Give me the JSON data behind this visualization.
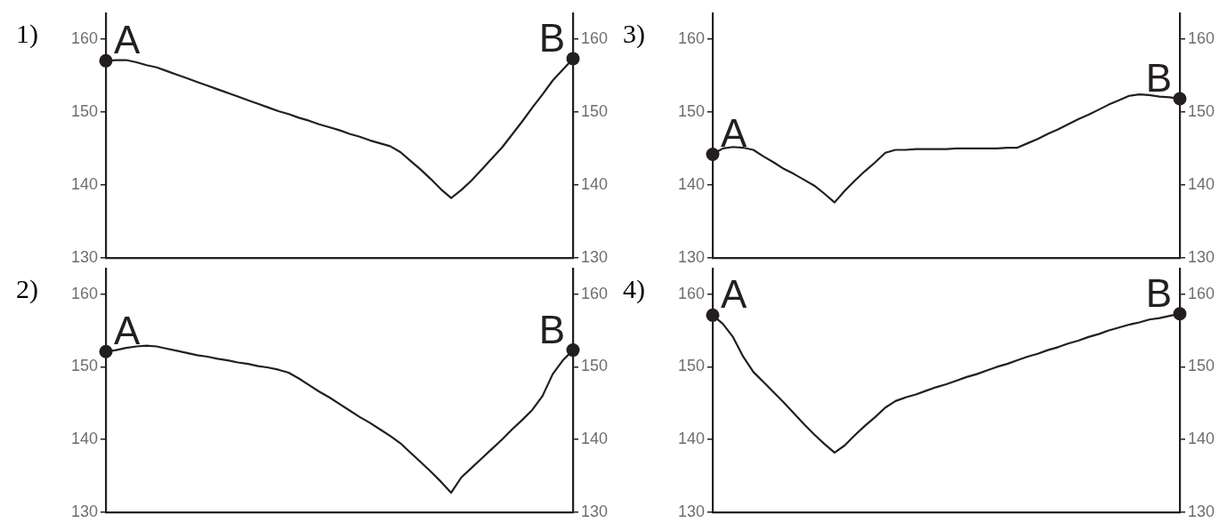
{
  "chart_data": [
    {
      "type": "line",
      "title": "1)",
      "categories": [
        null,
        null,
        null,
        null,
        null,
        null,
        null,
        null,
        null,
        null,
        null,
        null,
        null,
        null,
        null,
        null,
        null,
        null,
        null,
        null,
        null,
        null,
        null,
        null,
        null,
        null,
        null,
        null,
        null,
        null,
        null,
        null,
        null,
        null,
        null,
        null,
        null,
        null,
        null,
        null,
        null,
        null,
        null,
        null,
        null,
        null,
        null
      ],
      "series": [
        {
          "type": "line",
          "color": "#231f20",
          "marker": "none",
          "values": [
            157.0,
            157.1,
            157.1,
            156.8,
            156.4,
            156.1,
            155.6,
            155.1,
            154.6,
            154.1,
            153.6,
            153.1,
            152.6,
            152.1,
            151.6,
            151.1,
            150.6,
            150.1,
            149.7,
            149.2,
            148.8,
            148.3,
            147.9,
            147.5,
            147.0,
            146.6,
            146.1,
            145.7,
            145.3,
            144.5,
            143.3,
            142.1,
            140.8,
            139.4,
            138.2,
            139.3,
            140.6,
            142.1,
            143.6,
            145.1,
            146.9,
            148.7,
            150.6,
            152.4,
            154.3,
            155.8,
            157.3
          ]
        },
        {
          "type": "scatter",
          "color": "#231f20",
          "marker": "circle",
          "values": [
            157.0,
            null,
            null,
            null,
            null,
            null,
            null,
            null,
            null,
            null,
            null,
            null,
            null,
            null,
            null,
            null,
            null,
            null,
            null,
            null,
            null,
            null,
            null,
            null,
            null,
            null,
            null,
            null,
            null,
            null,
            null,
            null,
            null,
            null,
            null,
            null,
            null,
            null,
            null,
            null,
            null,
            null,
            null,
            null,
            null,
            null,
            157.3
          ]
        }
      ],
      "ylim": [
        130,
        163.5
      ],
      "yticks": [
        130,
        140,
        150,
        160
      ],
      "y2lim": [
        130,
        163.5
      ],
      "y2ticks": [
        130,
        140,
        150,
        160
      ],
      "tick_labels": "y",
      "annotations": [
        "A",
        "B"
      ]
    },
    {
      "type": "line",
      "title": "3)",
      "categories": [
        null,
        null,
        null,
        null,
        null,
        null,
        null,
        null,
        null,
        null,
        null,
        null,
        null,
        null,
        null,
        null,
        null,
        null,
        null,
        null,
        null,
        null,
        null,
        null,
        null,
        null,
        null,
        null,
        null,
        null,
        null,
        null,
        null,
        null,
        null,
        null,
        null,
        null,
        null,
        null,
        null,
        null,
        null,
        null,
        null,
        null,
        null
      ],
      "series": [
        {
          "type": "line",
          "color": "#231f20",
          "marker": "none",
          "values": [
            144.2,
            145.0,
            145.2,
            145.1,
            144.8,
            143.9,
            143.1,
            142.2,
            141.5,
            140.7,
            139.9,
            138.8,
            137.6,
            139.2,
            140.6,
            141.9,
            143.1,
            144.4,
            144.8,
            144.8,
            144.9,
            144.9,
            144.9,
            144.9,
            145.0,
            145.0,
            145.0,
            145.0,
            145.0,
            145.1,
            145.1,
            145.7,
            146.3,
            147.0,
            147.6,
            148.3,
            149.0,
            149.6,
            150.3,
            151.0,
            151.6,
            152.2,
            152.4,
            152.3,
            152.1,
            152.0,
            151.8
          ]
        },
        {
          "type": "scatter",
          "color": "#231f20",
          "marker": "circle",
          "values": [
            144.2,
            null,
            null,
            null,
            null,
            null,
            null,
            null,
            null,
            null,
            null,
            null,
            null,
            null,
            null,
            null,
            null,
            null,
            null,
            null,
            null,
            null,
            null,
            null,
            null,
            null,
            null,
            null,
            null,
            null,
            null,
            null,
            null,
            null,
            null,
            null,
            null,
            null,
            null,
            null,
            null,
            null,
            null,
            null,
            null,
            null,
            151.8
          ]
        }
      ],
      "ylim": [
        130,
        163.5
      ],
      "yticks": [
        130,
        140,
        150,
        160
      ],
      "y2lim": [
        130,
        163.5
      ],
      "y2ticks": [
        130,
        140,
        150,
        160
      ],
      "tick_labels": "y",
      "annotations": [
        "A",
        "B"
      ]
    },
    {
      "type": "line",
      "title": "2)",
      "categories": [
        null,
        null,
        null,
        null,
        null,
        null,
        null,
        null,
        null,
        null,
        null,
        null,
        null,
        null,
        null,
        null,
        null,
        null,
        null,
        null,
        null,
        null,
        null,
        null,
        null,
        null,
        null,
        null,
        null,
        null,
        null,
        null,
        null,
        null,
        null,
        null,
        null,
        null,
        null,
        null,
        null,
        null,
        null,
        null,
        null,
        null,
        null
      ],
      "series": [
        {
          "type": "line",
          "color": "#231f20",
          "marker": "none",
          "values": [
            152.1,
            152.3,
            152.6,
            152.8,
            152.9,
            152.8,
            152.5,
            152.2,
            151.9,
            151.6,
            151.4,
            151.1,
            150.9,
            150.6,
            150.4,
            150.1,
            149.9,
            149.6,
            149.2,
            148.4,
            147.5,
            146.6,
            145.8,
            144.9,
            144.0,
            143.1,
            142.3,
            141.4,
            140.5,
            139.5,
            138.2,
            136.9,
            135.6,
            134.2,
            132.7,
            134.8,
            136.1,
            137.4,
            138.7,
            140.0,
            141.4,
            142.7,
            144.1,
            146.0,
            149.0,
            150.9,
            152.3
          ]
        },
        {
          "type": "scatter",
          "color": "#231f20",
          "marker": "circle",
          "values": [
            152.1,
            null,
            null,
            null,
            null,
            null,
            null,
            null,
            null,
            null,
            null,
            null,
            null,
            null,
            null,
            null,
            null,
            null,
            null,
            null,
            null,
            null,
            null,
            null,
            null,
            null,
            null,
            null,
            null,
            null,
            null,
            null,
            null,
            null,
            null,
            null,
            null,
            null,
            null,
            null,
            null,
            null,
            null,
            null,
            null,
            null,
            152.3
          ]
        }
      ],
      "ylim": [
        130,
        163.5
      ],
      "yticks": [
        130,
        140,
        150,
        160
      ],
      "y2lim": [
        130,
        163.5
      ],
      "y2ticks": [
        130,
        140,
        150,
        160
      ],
      "tick_labels": "y",
      "annotations": [
        "A",
        "B"
      ]
    },
    {
      "type": "line",
      "title": "4)",
      "categories": [
        null,
        null,
        null,
        null,
        null,
        null,
        null,
        null,
        null,
        null,
        null,
        null,
        null,
        null,
        null,
        null,
        null,
        null,
        null,
        null,
        null,
        null,
        null,
        null,
        null,
        null,
        null,
        null,
        null,
        null,
        null,
        null,
        null,
        null,
        null,
        null,
        null,
        null,
        null,
        null,
        null,
        null,
        null,
        null,
        null,
        null,
        null
      ],
      "series": [
        {
          "type": "line",
          "color": "#231f20",
          "marker": "none",
          "values": [
            157.1,
            155.9,
            154.1,
            151.4,
            149.3,
            147.9,
            146.5,
            145.1,
            143.6,
            142.1,
            140.7,
            139.4,
            138.2,
            139.2,
            140.6,
            141.9,
            143.1,
            144.4,
            145.3,
            145.8,
            146.2,
            146.7,
            147.2,
            147.6,
            148.1,
            148.6,
            149.0,
            149.5,
            150.0,
            150.4,
            150.9,
            151.4,
            151.8,
            152.3,
            152.7,
            153.2,
            153.6,
            154.1,
            154.5,
            155.0,
            155.4,
            155.8,
            156.1,
            156.5,
            156.7,
            157.0,
            157.3
          ]
        },
        {
          "type": "scatter",
          "color": "#231f20",
          "marker": "circle",
          "values": [
            157.1,
            null,
            null,
            null,
            null,
            null,
            null,
            null,
            null,
            null,
            null,
            null,
            null,
            null,
            null,
            null,
            null,
            null,
            null,
            null,
            null,
            null,
            null,
            null,
            null,
            null,
            null,
            null,
            null,
            null,
            null,
            null,
            null,
            null,
            null,
            null,
            null,
            null,
            null,
            null,
            null,
            null,
            null,
            null,
            null,
            null,
            157.3
          ]
        }
      ],
      "ylim": [
        130,
        163.5
      ],
      "yticks": [
        130,
        140,
        150,
        160
      ],
      "y2lim": [
        130,
        163.5
      ],
      "y2ticks": [
        130,
        140,
        150,
        160
      ],
      "tick_labels": "y",
      "annotations": [
        "A",
        "B"
      ]
    }
  ]
}
